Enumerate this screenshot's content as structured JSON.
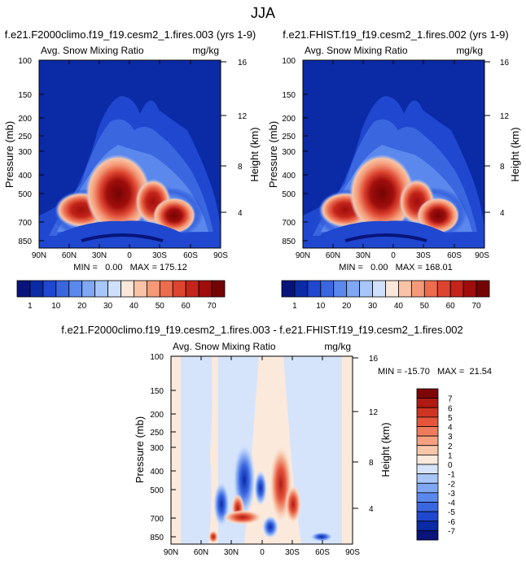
{
  "page": {
    "title": "JJA"
  },
  "contour_fill_colors": {
    "full": [
      "#08147a",
      "#0b2aa6",
      "#1f47cf",
      "#3a66e0",
      "#5b88ec",
      "#7fa7f3",
      "#a8c6fa",
      "#cfe0fd",
      "#fbe7d9",
      "#f8c3a6",
      "#f49a78",
      "#ec6c4d",
      "#dd4430",
      "#c4241a",
      "#9f0e0c",
      "#740404"
    ],
    "diff": [
      "#08147a",
      "#0b2aa6",
      "#1f47cf",
      "#3a66e0",
      "#5b88ec",
      "#7fa7f3",
      "#a8c6fa",
      "#d6e4fb",
      "#fbe9dc",
      "#f8c6aa",
      "#f4a080",
      "#ee7c5c",
      "#e4553b",
      "#cf3422",
      "#b01a12",
      "#7f0606"
    ]
  },
  "chart_data": [
    {
      "type": "heatmap",
      "title": "f.e21.F2000climo.f19_f19.cesm2_1.fires.003 (yrs 1-9)",
      "subtitle_left": "Avg. Snow Mixing Ratio",
      "subtitle_right": "mg/kg",
      "ylabel": "Pressure (mb)",
      "ylabel_right": "Height (km)",
      "x_tick_labels": [
        "90N",
        "60N",
        "30N",
        "0",
        "30S",
        "60S",
        "90S"
      ],
      "y_tick_labels": [
        "100",
        "150",
        "200",
        "250",
        "300",
        "400",
        "500",
        "700",
        "850"
      ],
      "y_tick_values": [
        100,
        150,
        200,
        250,
        300,
        400,
        500,
        700,
        850
      ],
      "ylim": [
        100,
        1000
      ],
      "y_scale": "log",
      "right_tick_labels": [
        "16",
        "12",
        "8",
        "4"
      ],
      "stats": "MIN =   0.00   MAX = 175.12",
      "min": 0.0,
      "max": 175.12,
      "colorbar_labels": [
        "1",
        "10",
        "20",
        "30",
        "40",
        "50",
        "60",
        "70"
      ],
      "colorbar_levels": [
        1,
        5,
        10,
        15,
        20,
        25,
        30,
        35,
        40,
        45,
        50,
        55,
        60,
        65,
        70
      ]
    },
    {
      "type": "heatmap",
      "title": "f.e21.FHIST.f19_f19.cesm2_1.fires.002 (yrs 1-9)",
      "subtitle_left": "Avg. Snow Mixing Ratio",
      "subtitle_right": "mg/kg",
      "ylabel": "Pressure (mb)",
      "ylabel_right": "Height (km)",
      "x_tick_labels": [
        "90N",
        "60N",
        "30N",
        "0",
        "30S",
        "60S",
        "90S"
      ],
      "y_tick_labels": [
        "100",
        "150",
        "200",
        "250",
        "300",
        "400",
        "500",
        "700",
        "850"
      ],
      "y_tick_values": [
        100,
        150,
        200,
        250,
        300,
        400,
        500,
        700,
        850
      ],
      "ylim": [
        100,
        1000
      ],
      "y_scale": "log",
      "right_tick_labels": [
        "16",
        "12",
        "8",
        "4"
      ],
      "stats": "MIN =   0.00   MAX = 168.01",
      "min": 0.0,
      "max": 168.01,
      "colorbar_labels": [
        "1",
        "10",
        "20",
        "30",
        "40",
        "50",
        "60",
        "70"
      ],
      "colorbar_levels": [
        1,
        5,
        10,
        15,
        20,
        25,
        30,
        35,
        40,
        45,
        50,
        55,
        60,
        65,
        70
      ]
    },
    {
      "type": "heatmap",
      "title": "f.e21.F2000climo.f19_f19.cesm2_1.fires.003 - f.e21.FHIST.f19_f19.cesm2_1.fires.002",
      "subtitle_left": "Avg. Snow Mixing Ratio",
      "subtitle_right": "mg/kg",
      "ylabel": "Pressure (mb)",
      "ylabel_right": "Height (km)",
      "x_tick_labels": [
        "90N",
        "60N",
        "30N",
        "0",
        "30S",
        "60S",
        "90S"
      ],
      "y_tick_labels": [
        "100",
        "150",
        "200",
        "250",
        "300",
        "400",
        "500",
        "700",
        "850"
      ],
      "y_tick_values": [
        100,
        150,
        200,
        250,
        300,
        400,
        500,
        700,
        850
      ],
      "ylim": [
        100,
        1000
      ],
      "y_scale": "log",
      "right_tick_labels": [
        "16",
        "12",
        "8",
        "4"
      ],
      "stats": "MIN = -15.70   MAX =  21.54",
      "min": -15.7,
      "max": 21.54,
      "colorbar_labels": [
        "7",
        "6",
        "5",
        "4",
        "3",
        "2",
        "1",
        "0",
        "-1",
        "-2",
        "-3",
        "-4",
        "-5",
        "-6",
        "-7"
      ],
      "colorbar_levels": [
        -7,
        -6,
        -5,
        -4,
        -3,
        -2,
        -1,
        0,
        1,
        2,
        3,
        4,
        5,
        6,
        7
      ]
    }
  ]
}
